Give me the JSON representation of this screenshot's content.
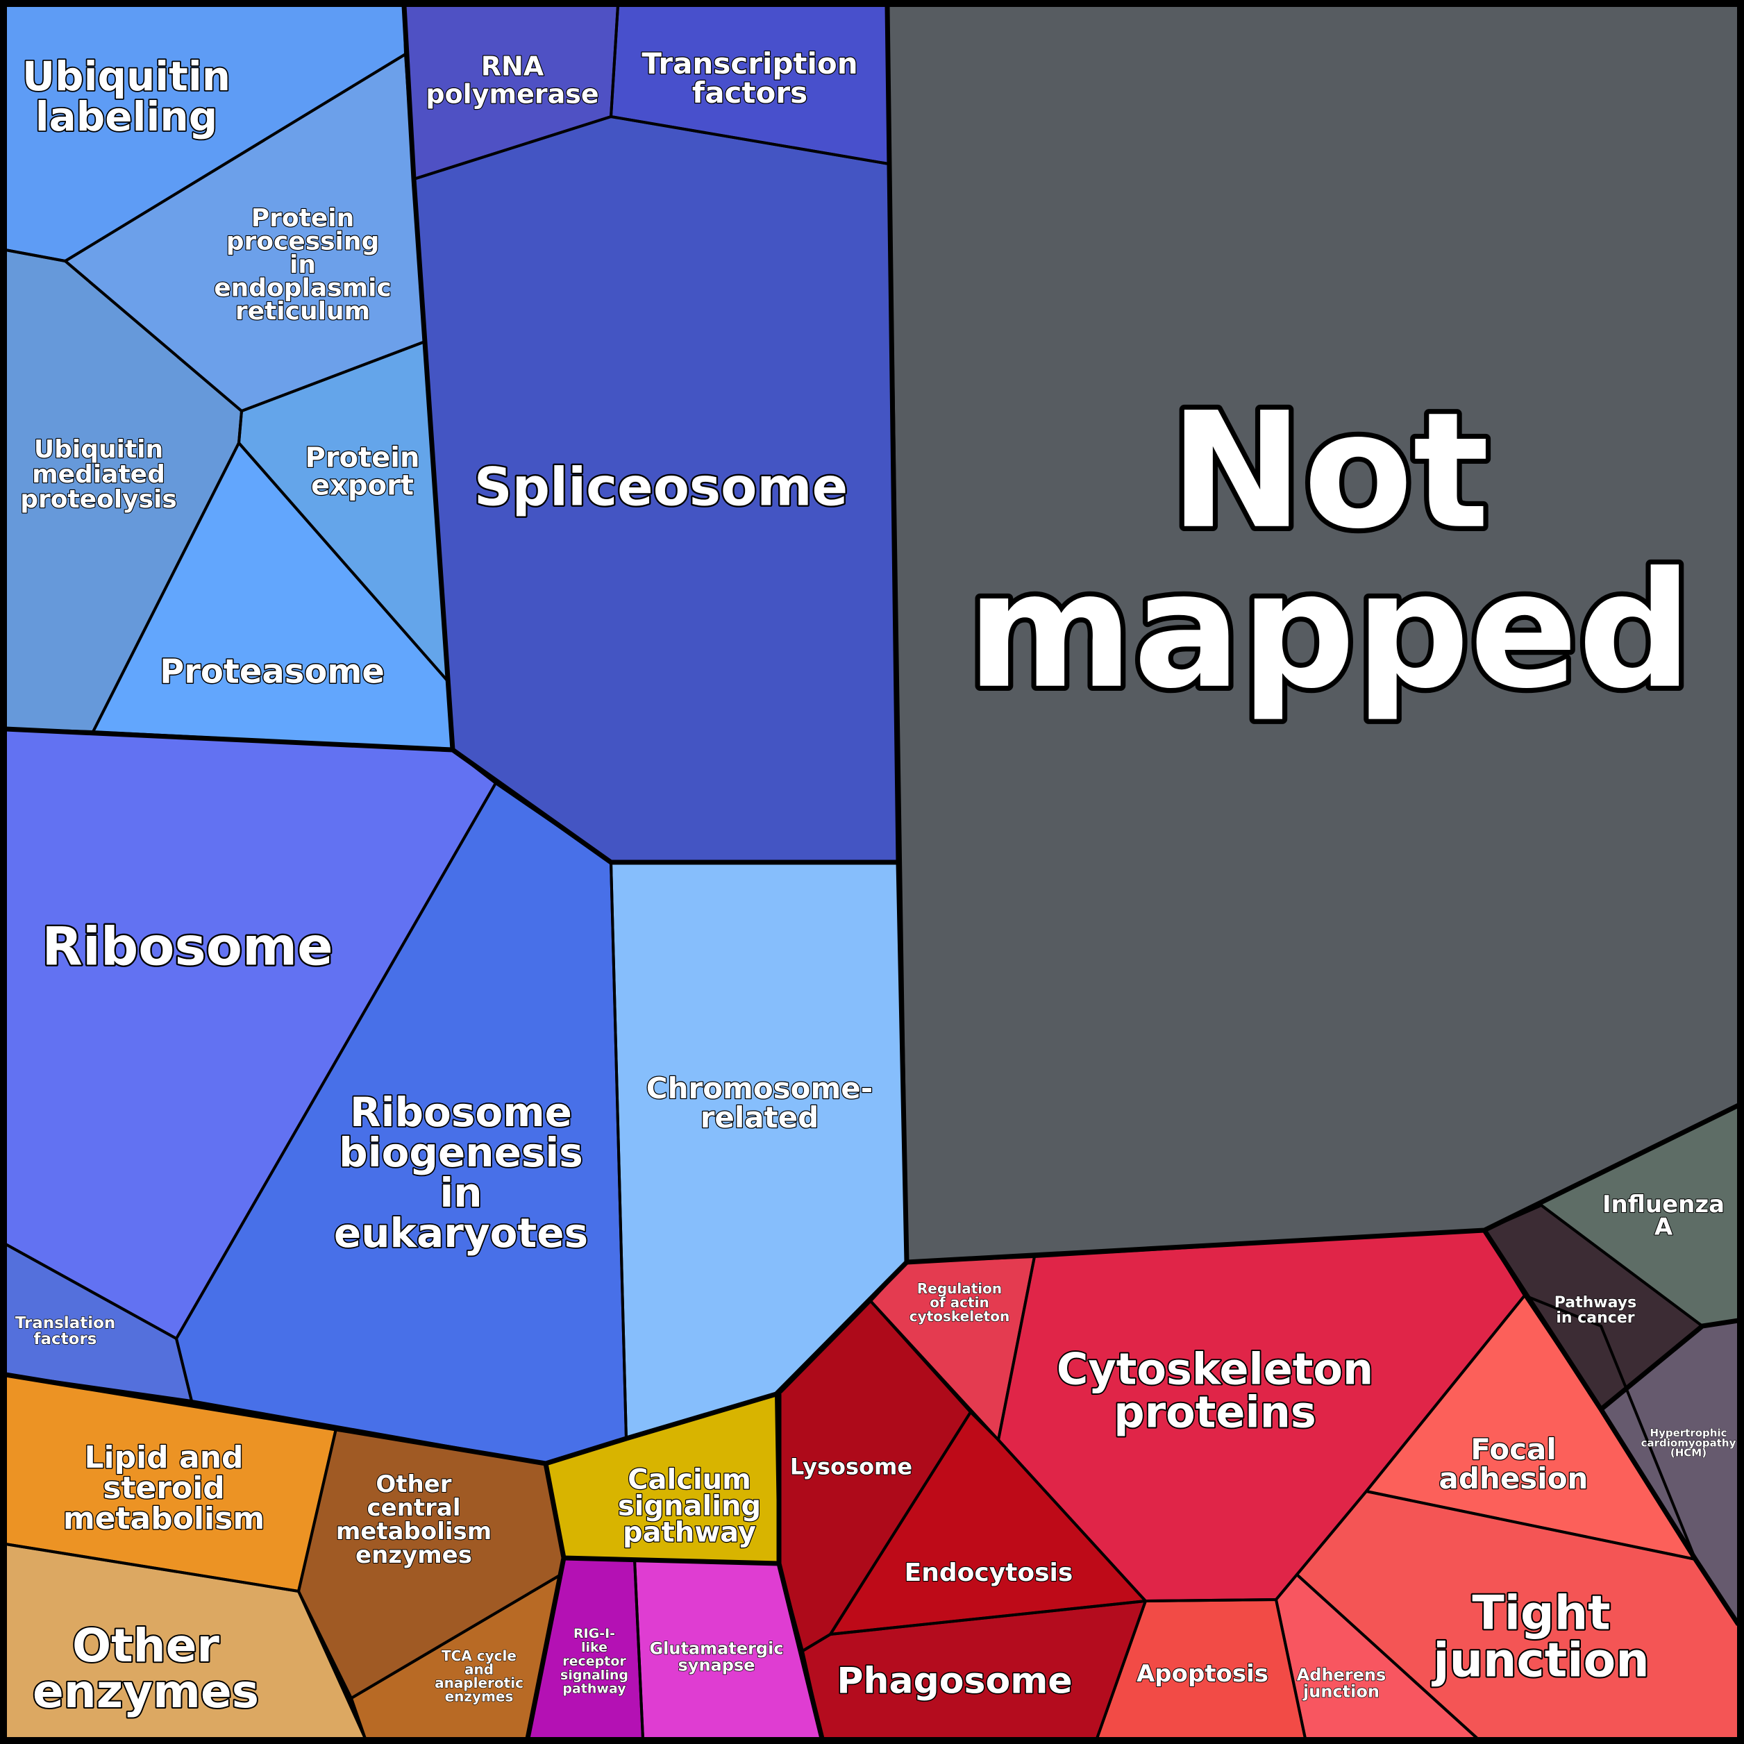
{
  "chart_data": {
    "type": "voronoi-treemap",
    "groups": [
      {
        "name": "",
        "color": "#575C61",
        "cells": [
          {
            "label": "Not mapped",
            "lines": [
              "Not",
              "mapped"
            ],
            "color": "#575C61"
          }
        ]
      },
      {
        "name": "",
        "color": "#4455C3",
        "cells": [
          {
            "label": "RNA polymerase",
            "lines": [
              "RNA",
              "polymerase"
            ],
            "color": "#4F51C4"
          },
          {
            "label": "Transcription factors",
            "lines": [
              "Transcription",
              "factors"
            ],
            "color": "#4850CC"
          },
          {
            "label": "Spliceosome",
            "lines": [
              "Spliceosome"
            ],
            "color": "#4455C3"
          }
        ]
      },
      {
        "name": "",
        "color": "#5E9CF5",
        "cells": [
          {
            "label": "Ubiquitin labeling",
            "lines": [
              "Ubiquitin",
              "labeling"
            ],
            "color": "#5E9CF5"
          },
          {
            "label": "Protein processing in endoplasmic reticulum",
            "lines": [
              "Protein",
              "processing",
              "in",
              "endoplasmic",
              "reticulum"
            ],
            "color": "#6CA0EA"
          },
          {
            "label": "Ubiquitin mediated proteolysis",
            "lines": [
              "Ubiquitin",
              "mediated",
              "proteolysis"
            ],
            "color": "#6699DA"
          },
          {
            "label": "Protein export",
            "lines": [
              "Protein",
              "export"
            ],
            "color": "#64A5EA"
          },
          {
            "label": "Proteasome",
            "lines": [
              "Proteasome"
            ],
            "color": "#62A6FD"
          }
        ]
      },
      {
        "name": "",
        "color": "#4870E8",
        "cells": [
          {
            "label": "Ribosome",
            "lines": [
              "Ribosome"
            ],
            "color": "#6272F2"
          },
          {
            "label": "Ribosome biogenesis in eukaryotes",
            "lines": [
              "Ribosome",
              "biogenesis",
              "in",
              "eukaryotes"
            ],
            "color": "#4870E8"
          },
          {
            "label": "Translation factors",
            "lines": [
              "Translation",
              "factors"
            ],
            "color": "#5470DC"
          },
          {
            "label": "Chromosome-related",
            "lines": [
              "Chromosome-",
              "related"
            ],
            "color": "#86BEFC"
          }
        ]
      },
      {
        "name": "",
        "color": "#D8B400",
        "cells": [
          {
            "label": "Calcium signaling pathway",
            "lines": [
              "Calcium",
              "signaling",
              "pathway"
            ],
            "color": "#D8B400"
          },
          {
            "label": "RIG-I-like receptor signaling pathway",
            "lines": [
              "RIG-I-",
              "like",
              "receptor",
              "signaling",
              "pathway"
            ],
            "color": "#B411B4"
          },
          {
            "label": "Glutamatergic synapse",
            "lines": [
              "Glutamatergic",
              "synapse"
            ],
            "color": "#DF3DD2"
          }
        ]
      },
      {
        "name": "",
        "color": "#EC9324",
        "cells": [
          {
            "label": "Lipid and steroid metabolism",
            "lines": [
              "Lipid and",
              "steroid",
              "metabolism"
            ],
            "color": "#EC9324"
          },
          {
            "label": "Other central metabolism enzymes",
            "lines": [
              "Other",
              "central",
              "metabolism",
              "enzymes"
            ],
            "color": "#A05A24"
          },
          {
            "label": "Other enzymes",
            "lines": [
              "Other",
              "enzymes"
            ],
            "color": "#DCA862"
          },
          {
            "label": "TCA cycle and anaplerotic enzymes",
            "lines": [
              "TCA cycle",
              "and",
              "anaplerotic",
              "enzymes"
            ],
            "color": "#B86A25"
          }
        ]
      },
      {
        "name": "",
        "color": "#E02548",
        "cells": [
          {
            "label": "Regulation of actin cytoskeleton",
            "lines": [
              "Regulation",
              "of actin",
              "cytoskeleton"
            ],
            "color": "#E43B50"
          },
          {
            "label": "Cytoskeleton proteins",
            "lines": [
              "Cytoskeleton",
              "proteins"
            ],
            "color": "#E02548"
          },
          {
            "label": "Lysosome",
            "lines": [
              "Lysosome"
            ],
            "color": "#AE0A1A"
          },
          {
            "label": "Endocytosis",
            "lines": [
              "Endocytosis"
            ],
            "color": "#BE0A18"
          },
          {
            "label": "Phagosome",
            "lines": [
              "Phagosome"
            ],
            "color": "#B40C1E"
          },
          {
            "label": "Apoptosis",
            "lines": [
              "Apoptosis"
            ],
            "color": "#F24B46"
          },
          {
            "label": "Adherens junction",
            "lines": [
              "Adherens",
              "junction"
            ],
            "color": "#F85660"
          },
          {
            "label": "Focal adhesion",
            "lines": [
              "Focal",
              "adhesion"
            ],
            "color": "#FC605A"
          },
          {
            "label": "Tight junction",
            "lines": [
              "Tight",
              "junction"
            ],
            "color": "#F45555"
          }
        ]
      },
      {
        "name": "",
        "color": "#3C2C34",
        "cells": [
          {
            "label": "Influenza A",
            "lines": [
              "Influenza",
              "A"
            ],
            "color": "#5E6D66"
          },
          {
            "label": "Pathways in cancer",
            "lines": [
              "Pathways",
              "in cancer"
            ],
            "color": "#3C2C34"
          },
          {
            "label": "Hypertrophic cardiomyopathy (HCM)",
            "lines": [
              "Hypertrophic",
              "cardiomyopathy",
              "(HCM)"
            ],
            "color": "#665A6E"
          }
        ]
      }
    ]
  }
}
